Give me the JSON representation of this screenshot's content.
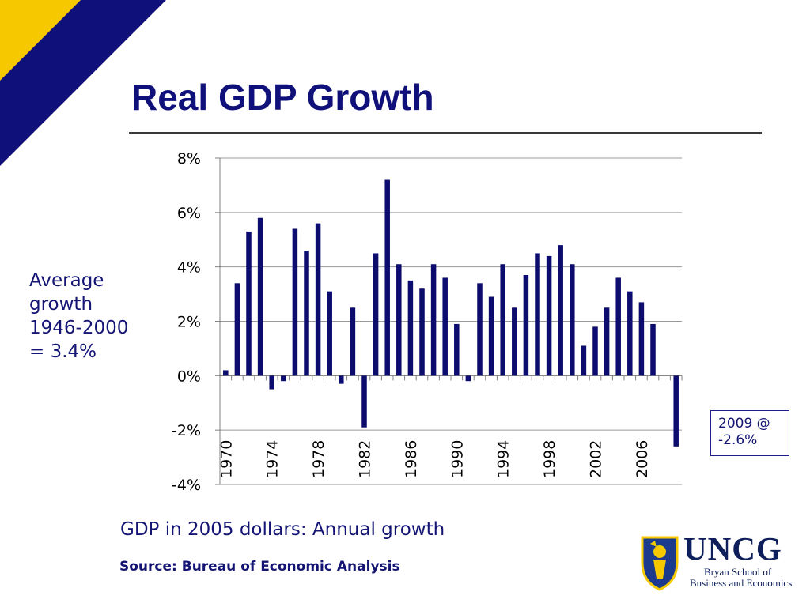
{
  "slide": {
    "title": "Real GDP Growth",
    "avg_note_lines": [
      "Average",
      "growth",
      "1946-2000",
      "= 3.4%"
    ],
    "callout_lines": [
      "2009 @",
      "-2.6%"
    ],
    "caption": "GDP in 2005 dollars:  Annual growth",
    "source": "Source:  Bureau of Economic Analysis",
    "logo": {
      "name": "UNCG",
      "line2": "Bryan School of",
      "line3": "Business and Economics"
    },
    "colors": {
      "navy": "#10107a",
      "gold": "#f5c800",
      "bar": "#0c0c6e"
    }
  },
  "chart_data": {
    "type": "bar",
    "title": "",
    "xlabel": "",
    "ylabel": "",
    "ylim": [
      -4,
      8
    ],
    "y_ticks": [
      "8%",
      "6%",
      "4%",
      "2%",
      "0%",
      "-2%",
      "-4%"
    ],
    "x_tick_labels": [
      "1970",
      "1974",
      "1978",
      "1982",
      "1986",
      "1990",
      "1994",
      "1998",
      "2002",
      "2006"
    ],
    "grid": true,
    "legend": "none",
    "categories": [
      "1970",
      "1971",
      "1972",
      "1973",
      "1974",
      "1975",
      "1976",
      "1977",
      "1978",
      "1979",
      "1980",
      "1981",
      "1982",
      "1983",
      "1984",
      "1985",
      "1986",
      "1987",
      "1988",
      "1989",
      "1990",
      "1991",
      "1992",
      "1993",
      "1994",
      "1995",
      "1996",
      "1997",
      "1998",
      "1999",
      "2000",
      "2001",
      "2002",
      "2003",
      "2004",
      "2005",
      "2006",
      "2007",
      "2008",
      "2009"
    ],
    "values": [
      0.2,
      3.4,
      5.3,
      5.8,
      -0.5,
      -0.2,
      5.4,
      4.6,
      5.6,
      3.1,
      -0.3,
      2.5,
      -1.9,
      4.5,
      7.2,
      4.1,
      3.5,
      3.2,
      4.1,
      3.6,
      1.9,
      -0.2,
      3.4,
      2.9,
      4.1,
      2.5,
      3.7,
      4.5,
      4.4,
      4.8,
      4.1,
      1.1,
      1.8,
      2.5,
      3.6,
      3.1,
      2.7,
      1.9,
      0.0,
      -2.6
    ]
  }
}
